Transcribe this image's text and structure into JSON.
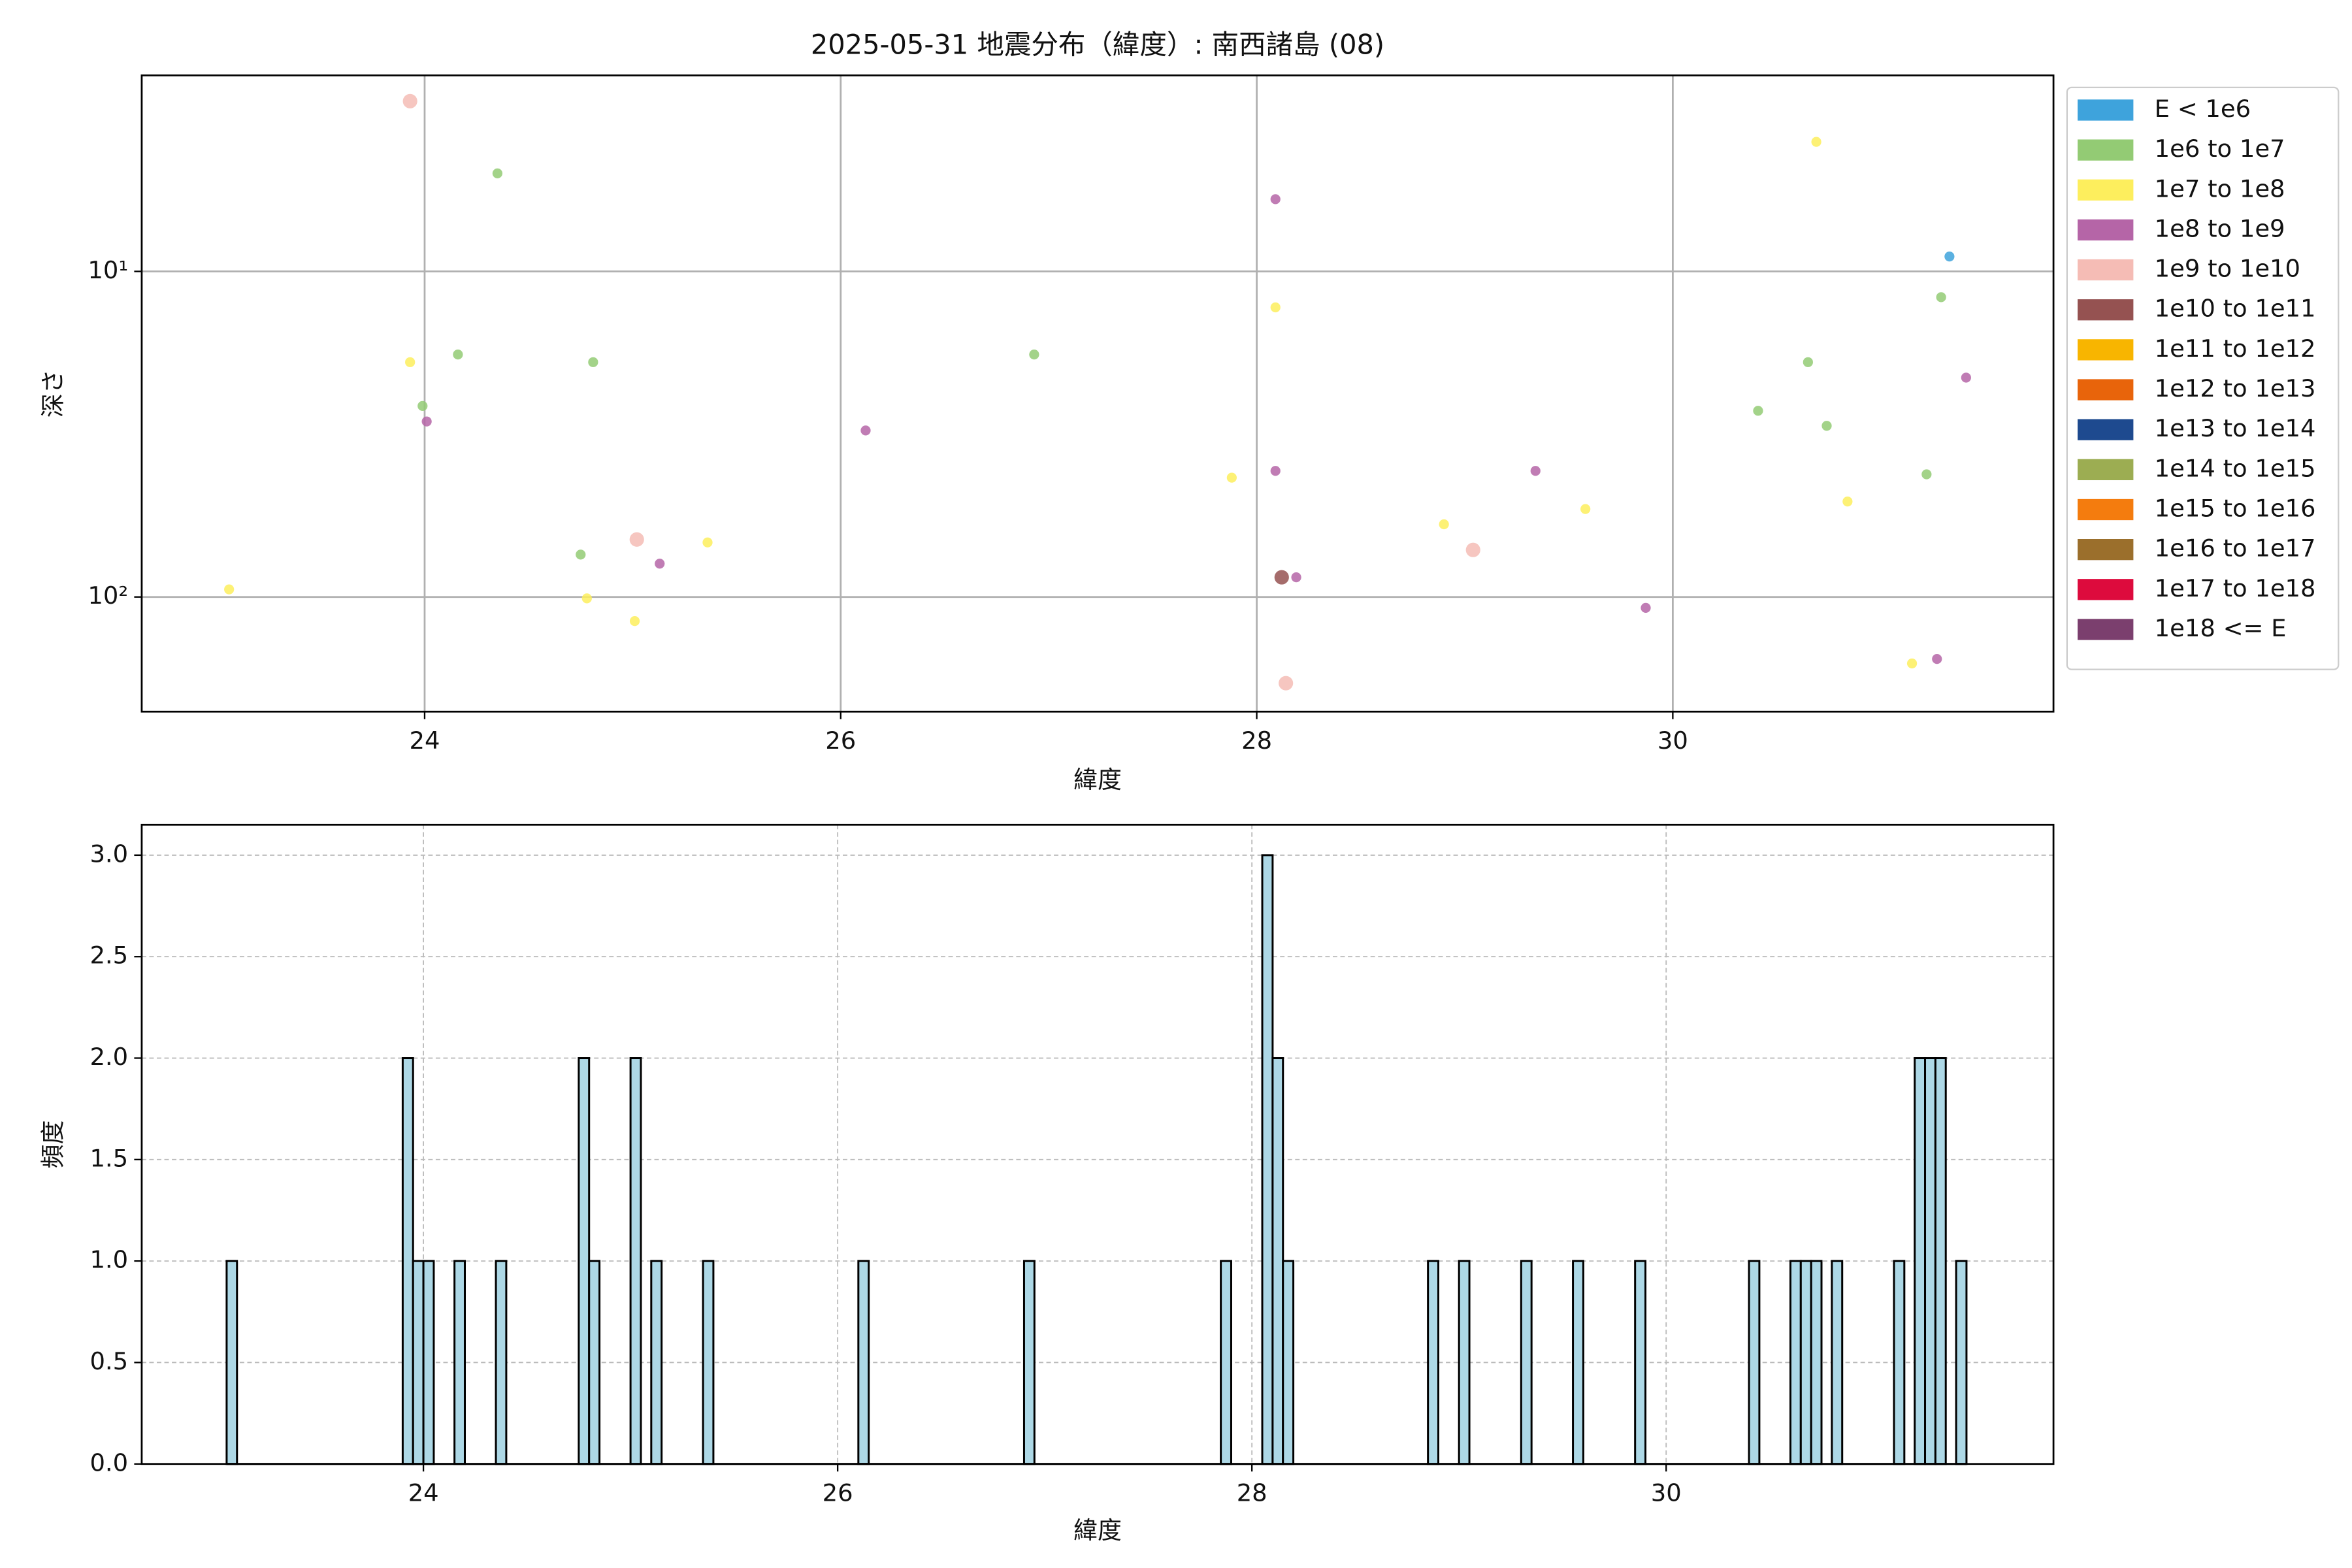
{
  "chart_data": [
    {
      "type": "scatter",
      "title": "2025-05-31 地震分布（緯度）: 南西諸島 (08)",
      "xlabel": "緯度",
      "ylabel": "深さ",
      "xlim": [
        22.64,
        31.83
      ],
      "xticks": [
        24,
        26,
        28,
        30
      ],
      "ylim": [
        225,
        2.5
      ],
      "yscale": "log",
      "yticks": [
        {
          "value": 10,
          "label": "10¹"
        },
        {
          "value": 100,
          "label": "10²"
        }
      ],
      "grid": true,
      "grid_style": "solid",
      "legend": "outside upper right",
      "series": [
        {
          "name": "E < 1e6",
          "color": "#3ea3dc",
          "x": [
            31.33
          ],
          "values": [
            9.0
          ]
        },
        {
          "name": "1e6 to 1e7",
          "color": "#93cb74",
          "x": [
            24.35,
            23.99,
            24.16,
            24.81,
            24.75,
            26.93,
            30.41,
            30.65,
            30.74,
            31.22,
            31.29
          ],
          "values": [
            5.0,
            25.9,
            18.0,
            19.0,
            74.1,
            18.0,
            26.8,
            19.0,
            29.8,
            42.0,
            12.0
          ]
        },
        {
          "name": "1e7 to 1e8",
          "color": "#fdee5d",
          "x": [
            23.06,
            23.93,
            24.78,
            25.01,
            25.36,
            27.88,
            28.09,
            28.9,
            29.58,
            30.69,
            30.84,
            31.15
          ],
          "values": [
            94.8,
            19.0,
            101,
            118.6,
            68,
            43,
            12.9,
            59.8,
            53.7,
            4.0,
            50.9,
            160
          ]
        },
        {
          "name": "1e8 to 1e9",
          "color": "#b565a7",
          "x": [
            24.01,
            25.13,
            26.12,
            28.09,
            28.09,
            28.19,
            29.34,
            29.87,
            31.27,
            31.41
          ],
          "values": [
            28.9,
            79,
            30.8,
            6.0,
            41,
            87,
            41,
            108,
            155,
            21.2
          ]
        },
        {
          "name": "1e9 to 1e10",
          "color": "#f5bcb5",
          "x": [
            23.93,
            25.02,
            29.04,
            28.14
          ],
          "values": [
            3.0,
            66.6,
            71.7,
            184
          ]
        },
        {
          "name": "1e10 to 1e11",
          "color": "#955251",
          "x": [
            28.12
          ],
          "values": [
            87
          ]
        },
        {
          "name": "1e11 to 1e12",
          "color": "#f8b500",
          "x": [],
          "values": []
        },
        {
          "name": "1e12 to 1e13",
          "color": "#e8640b",
          "x": [],
          "values": []
        },
        {
          "name": "1e13 to 1e14",
          "color": "#1e4a8f",
          "x": [],
          "values": []
        },
        {
          "name": "1e14 to 1e15",
          "color": "#9cad52",
          "x": [],
          "values": []
        },
        {
          "name": "1e15 to 1e16",
          "color": "#f47c0e",
          "x": [],
          "values": []
        },
        {
          "name": "1e16 to 1e17",
          "color": "#9b6f2c",
          "x": [],
          "values": []
        },
        {
          "name": "1e17 to 1e18",
          "color": "#dd0b3d",
          "x": [],
          "values": []
        },
        {
          "name": "1e18 <= E",
          "color": "#7b3f6e",
          "x": [],
          "values": []
        }
      ]
    },
    {
      "type": "histogram",
      "xlabel": "緯度",
      "ylabel": "頻度",
      "xlim": [
        22.64,
        31.87
      ],
      "xticks": [
        24,
        26,
        28,
        30
      ],
      "ylim": [
        0,
        3.15
      ],
      "yticks": [
        {
          "value": 0,
          "label": "0.0"
        },
        {
          "value": 0.5,
          "label": "0.5"
        },
        {
          "value": 1,
          "label": "1.0"
        },
        {
          "value": 1.5,
          "label": "1.5"
        },
        {
          "value": 2,
          "label": "2.0"
        },
        {
          "value": 2.5,
          "label": "2.5"
        },
        {
          "value": 3,
          "label": "3.0"
        }
      ],
      "grid": true,
      "grid_style": "dashed",
      "color": "#add8e6",
      "edgecolor": "#000000",
      "bins": [
        23.05,
        23.1,
        23.15,
        23.2,
        23.25,
        23.3,
        23.35,
        23.4,
        23.45,
        23.5,
        23.55,
        23.6,
        23.65,
        23.7,
        23.75,
        23.8,
        23.85,
        23.9,
        23.95,
        24.0,
        24.05,
        24.1,
        24.15,
        24.2,
        24.25,
        24.3,
        24.35,
        24.4,
        24.45,
        24.5,
        24.55,
        24.6,
        24.65,
        24.7,
        24.75,
        24.8,
        24.85,
        24.9,
        24.95,
        25.0,
        25.05,
        25.1,
        25.15,
        25.2,
        25.25,
        25.3,
        25.35,
        25.4,
        25.45,
        25.5,
        25.55,
        25.6,
        25.65,
        25.7,
        25.75,
        25.8,
        25.85,
        25.9,
        25.95,
        26.0,
        26.05,
        26.1,
        26.15,
        26.2,
        26.25,
        26.3,
        26.35,
        26.4,
        26.45,
        26.5,
        26.55,
        26.6,
        26.65,
        26.7,
        26.75,
        26.8,
        26.85,
        26.9,
        26.95,
        27.0,
        27.05,
        27.1,
        27.15,
        27.2,
        27.25,
        27.3,
        27.35,
        27.4,
        27.45,
        27.5,
        27.55,
        27.6,
        27.65,
        27.7,
        27.75,
        27.8,
        27.85,
        27.9,
        27.95,
        28.0,
        28.05,
        28.1,
        28.15,
        28.2,
        28.25,
        28.3,
        28.35,
        28.4,
        28.45,
        28.5,
        28.55,
        28.6,
        28.65,
        28.7,
        28.75,
        28.8,
        28.85,
        28.9,
        28.95,
        29.0,
        29.05,
        29.1,
        29.15,
        29.2,
        29.25,
        29.3,
        29.35,
        29.4,
        29.45,
        29.5,
        29.55,
        29.6,
        29.65,
        29.7,
        29.75,
        29.8,
        29.85,
        29.9,
        29.95,
        30.0,
        30.05,
        30.1,
        30.15,
        30.2,
        30.25,
        30.3,
        30.35,
        30.4,
        30.45,
        30.5,
        30.55,
        30.6,
        30.65,
        30.7,
        30.75,
        30.8,
        30.85,
        30.9,
        30.95,
        31.0,
        31.05,
        31.1,
        31.15,
        31.2,
        31.25,
        31.3,
        31.35,
        31.4,
        31.45
      ],
      "values": [
        1,
        0,
        0,
        0,
        0,
        0,
        0,
        0,
        0,
        0,
        0,
        0,
        0,
        0,
        0,
        0,
        0,
        2,
        1,
        1,
        0,
        0,
        1,
        0,
        0,
        0,
        1,
        0,
        0,
        0,
        0,
        0,
        0,
        0,
        2,
        1,
        0,
        0,
        0,
        2,
        0,
        1,
        0,
        0,
        0,
        0,
        1,
        0,
        0,
        0,
        0,
        0,
        0,
        0,
        0,
        0,
        0,
        0,
        0,
        0,
        0,
        1,
        0,
        0,
        0,
        0,
        0,
        0,
        0,
        0,
        0,
        0,
        0,
        0,
        0,
        0,
        0,
        1,
        0,
        0,
        0,
        0,
        0,
        0,
        0,
        0,
        0,
        0,
        0,
        0,
        0,
        0,
        0,
        0,
        0,
        0,
        1,
        0,
        0,
        0,
        3,
        2,
        1,
        0,
        0,
        0,
        0,
        0,
        0,
        0,
        0,
        0,
        0,
        0,
        0,
        0,
        1,
        0,
        0,
        1,
        0,
        0,
        0,
        0,
        0,
        1,
        0,
        0,
        0,
        0,
        1,
        0,
        0,
        0,
        0,
        0,
        1,
        0,
        0,
        0,
        0,
        0,
        0,
        0,
        0,
        0,
        0,
        1,
        0,
        0,
        0,
        1,
        1,
        1,
        0,
        1,
        0,
        0,
        0,
        0,
        0,
        1,
        0,
        2,
        2,
        2,
        0,
        1
      ]
    }
  ]
}
